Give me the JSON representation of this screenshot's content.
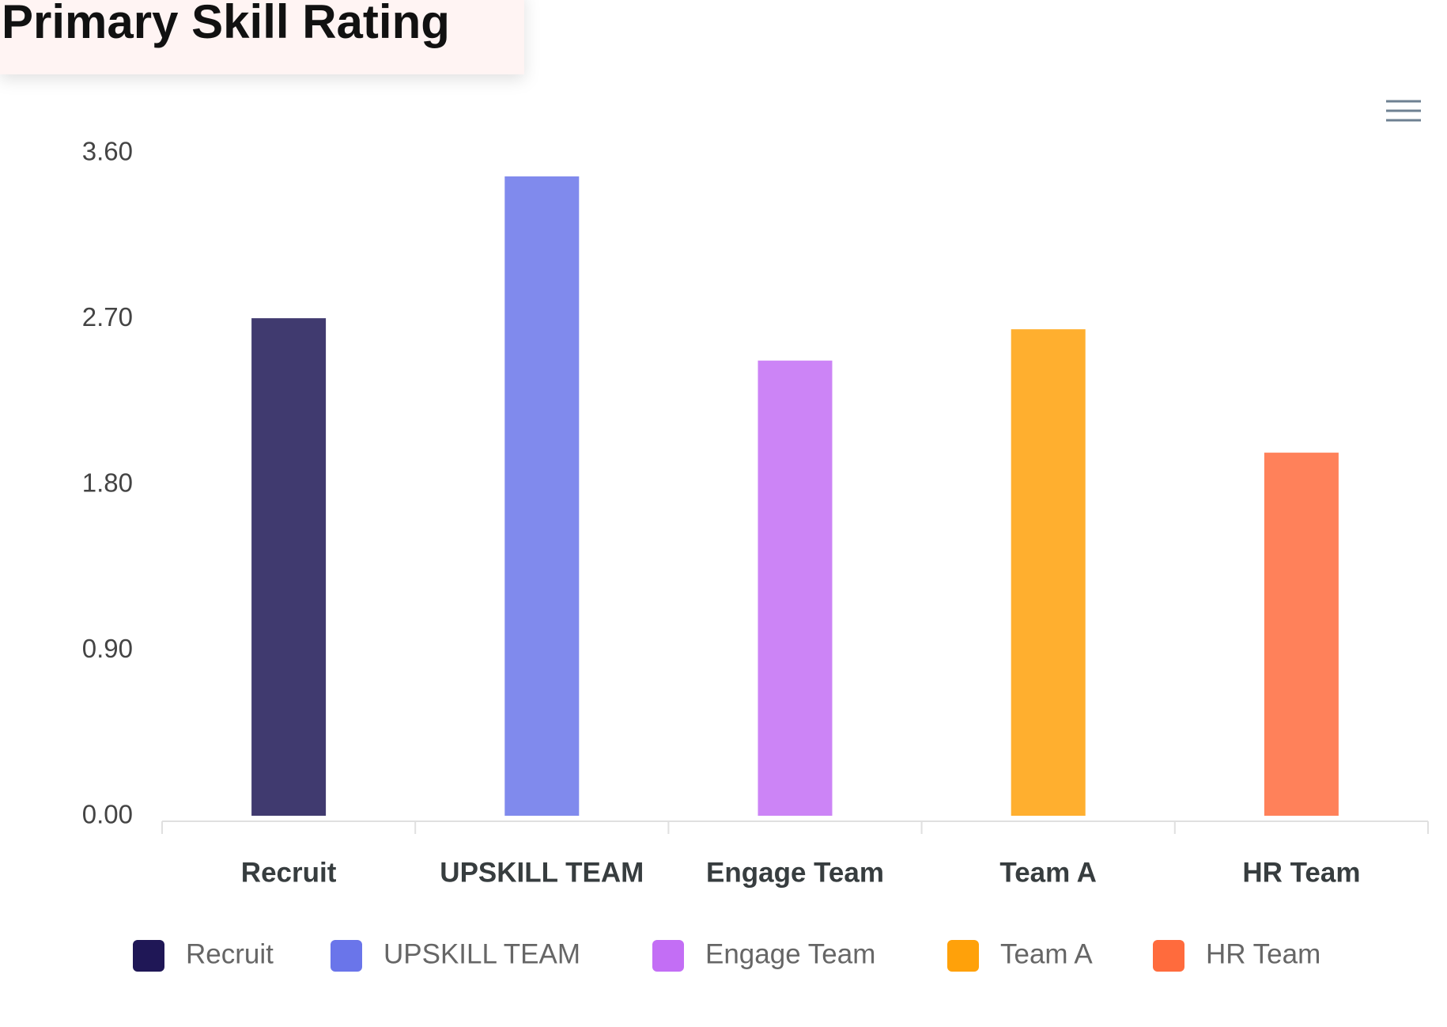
{
  "chart_data": {
    "type": "bar",
    "title": "Primary Skill Rating",
    "categories": [
      "Recruit",
      "UPSKILL TEAM",
      "Engage Team",
      "Team A",
      "HR Team"
    ],
    "values": [
      2.71,
      3.48,
      2.48,
      2.65,
      1.98
    ],
    "colors": [
      "#1f1756",
      "#6a75ea",
      "#c36ef5",
      "#ffa10a",
      "#ff6b3d"
    ],
    "ylim": [
      0,
      3.6
    ],
    "yticks": [
      {
        "value": 0,
        "label": "0.00"
      },
      {
        "value": 0.9,
        "label": "0.90"
      },
      {
        "value": 1.8,
        "label": "1.80"
      },
      {
        "value": 2.7,
        "label": "2.70"
      },
      {
        "value": 3.6,
        "label": "3.60"
      }
    ],
    "grid": false,
    "legend": "bottom"
  }
}
